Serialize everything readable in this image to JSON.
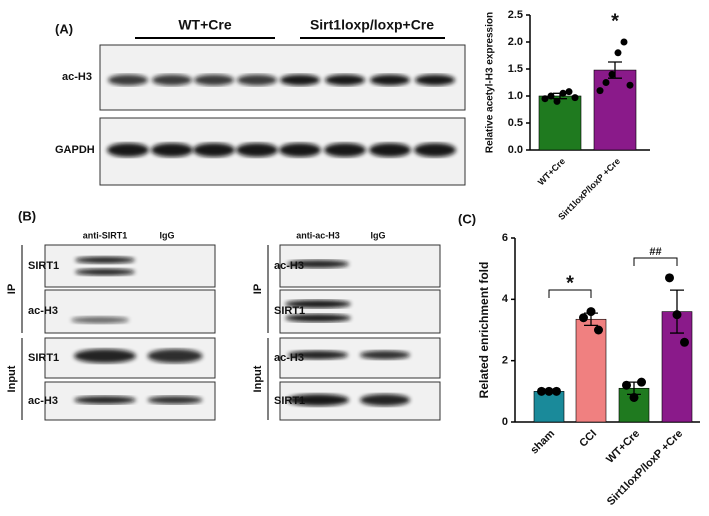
{
  "figure": {
    "panels": [
      "(A)",
      "(B)",
      "(C)"
    ],
    "a": {
      "groups": [
        "WT+Cre",
        "Sirt1loxp/loxp+Cre"
      ],
      "rows": [
        "ac-H3",
        "GAPDH"
      ]
    },
    "b": {
      "groups": [
        "IP",
        "Input"
      ],
      "left": {
        "columns": [
          "anti-SIRT1",
          "IgG"
        ],
        "rows": [
          "SIRT1",
          "ac-H3",
          "SIRT1",
          "ac-H3"
        ]
      },
      "right": {
        "columns": [
          "anti-ac-H3",
          "IgG"
        ],
        "rows": [
          "ac-H3",
          "SIRT1",
          "ac-H3",
          "SIRT1"
        ]
      }
    }
  },
  "chart_data": [
    {
      "type": "bar",
      "ylabel": "Relative acetyl-H3 expression",
      "categories": [
        "WT+Cre",
        "Sirt1loxP/loxP +Cre"
      ],
      "values": [
        1.0,
        1.48
      ],
      "errors": [
        0.05,
        0.15
      ],
      "points": [
        [
          0.95,
          1.0,
          0.9,
          1.05,
          1.08,
          0.97
        ],
        [
          1.1,
          1.25,
          1.4,
          1.8,
          2.0,
          1.2
        ]
      ],
      "colors": [
        "#1f7a1f",
        "#8a1a8a"
      ],
      "ylim": [
        0,
        2.5
      ],
      "yticks": [
        {
          "value": 0,
          "label": "0.0"
        },
        0.5,
        {
          "value": 1,
          "label": "1.0"
        },
        1.5,
        {
          "value": 2,
          "label": "2.0"
        },
        2.5
      ],
      "annotations": [
        "*"
      ]
    },
    {
      "type": "bar",
      "ylabel": "Related enrichment fold",
      "categories": [
        "sham",
        "CCI",
        "WT+Cre",
        "Sirt1loxP/loxP +Cre"
      ],
      "values": [
        1.0,
        3.35,
        1.1,
        3.6
      ],
      "errors": [
        0,
        0.2,
        0.2,
        0.7
      ],
      "points": [
        [
          1,
          1,
          1
        ],
        [
          3.4,
          3.6,
          3.0
        ],
        [
          1.2,
          0.8,
          1.3
        ],
        [
          4.7,
          3.5,
          2.6
        ]
      ],
      "colors": [
        "#1a8a9a",
        "#f08080",
        "#1f7a1f",
        "#8a1a8a"
      ],
      "ylim": [
        0,
        6
      ],
      "yticks": [
        0,
        2,
        4,
        6
      ],
      "annotations": [
        "*",
        "##"
      ]
    }
  ]
}
